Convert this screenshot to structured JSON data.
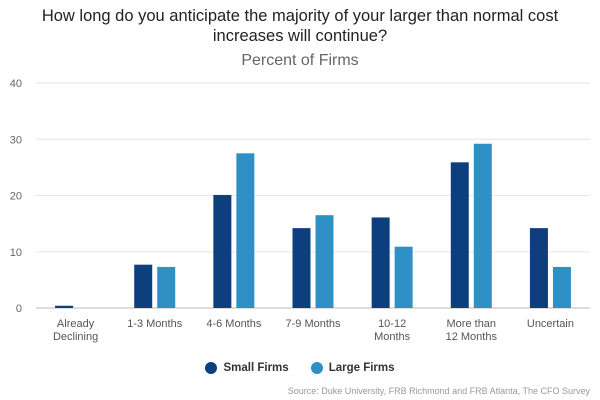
{
  "chart_data": {
    "type": "bar",
    "title_lines": [
      "How long do you anticipate the majority of your larger than normal cost",
      "increases will continue?"
    ],
    "subtitle": "Percent of Firms",
    "categories": [
      [
        "Already",
        "Declining"
      ],
      [
        "1-3 Months"
      ],
      [
        "4-6 Months"
      ],
      [
        "7-9 Months"
      ],
      [
        "10-12",
        "Months"
      ],
      [
        "More than",
        "12 Months"
      ],
      [
        "Uncertain"
      ]
    ],
    "series": [
      {
        "name": "Small Firms",
        "color": "#0d3f7f",
        "values": [
          0.4,
          7.7,
          20.1,
          14.2,
          16.1,
          25.9,
          14.2
        ]
      },
      {
        "name": "Large Firms",
        "color": "#2e90c4",
        "values": [
          0,
          7.3,
          27.5,
          16.5,
          10.9,
          29.2,
          7.3
        ]
      }
    ],
    "ylim": [
      0,
      40
    ],
    "yticks": [
      0,
      10,
      20,
      30,
      40
    ],
    "grid": true,
    "legend_position": "bottom-center",
    "source": "Source: Duke University, FRB Richmond and FRB Atlanta, The CFO Survey"
  }
}
